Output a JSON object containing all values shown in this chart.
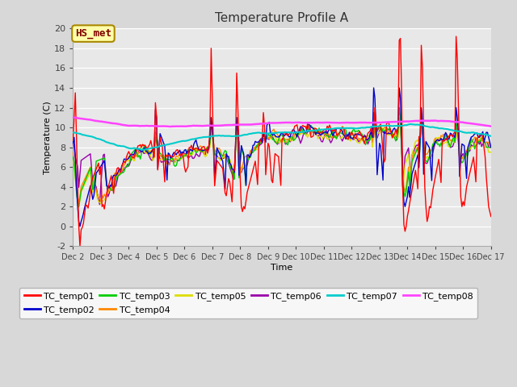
{
  "title": "Temperature Profile A",
  "xlabel": "Time",
  "ylabel": "Temperature (C)",
  "ylim": [
    -2,
    20
  ],
  "xlim": [
    0,
    360
  ],
  "fig_bg_color": "#d8d8d8",
  "plot_bg_color": "#e8e8e8",
  "series_colors": {
    "TC_temp01": "#ff0000",
    "TC_temp02": "#0000cc",
    "TC_temp03": "#00cc00",
    "TC_temp04": "#ff8800",
    "TC_temp05": "#dddd00",
    "TC_temp06": "#9900aa",
    "TC_temp07": "#00cccc",
    "TC_temp08": "#ff44ff"
  },
  "annotation_text": "HS_met",
  "annotation_color": "#800000",
  "annotation_bg": "#ffffaa",
  "annotation_border": "#aa8800",
  "x_tick_labels": [
    "Dec 2",
    "Dec 3",
    "Dec 4",
    "Dec 5",
    "Dec 6",
    "Dec 7",
    "Dec 8",
    "Dec 9",
    "Dec 10",
    "Dec 11",
    "Dec 12",
    "Dec 13",
    "Dec 14",
    "Dec 15",
    "Dec 16",
    "Dec 17"
  ],
  "x_tick_positions": [
    0,
    24,
    48,
    72,
    96,
    120,
    144,
    168,
    192,
    216,
    240,
    264,
    288,
    312,
    336,
    360
  ],
  "yticks": [
    -2,
    0,
    2,
    4,
    6,
    8,
    10,
    12,
    14,
    16,
    18,
    20
  ],
  "legend_entries": [
    "TC_temp01",
    "TC_temp02",
    "TC_temp03",
    "TC_temp04",
    "TC_temp05",
    "TC_temp06",
    "TC_temp07",
    "TC_temp08"
  ]
}
